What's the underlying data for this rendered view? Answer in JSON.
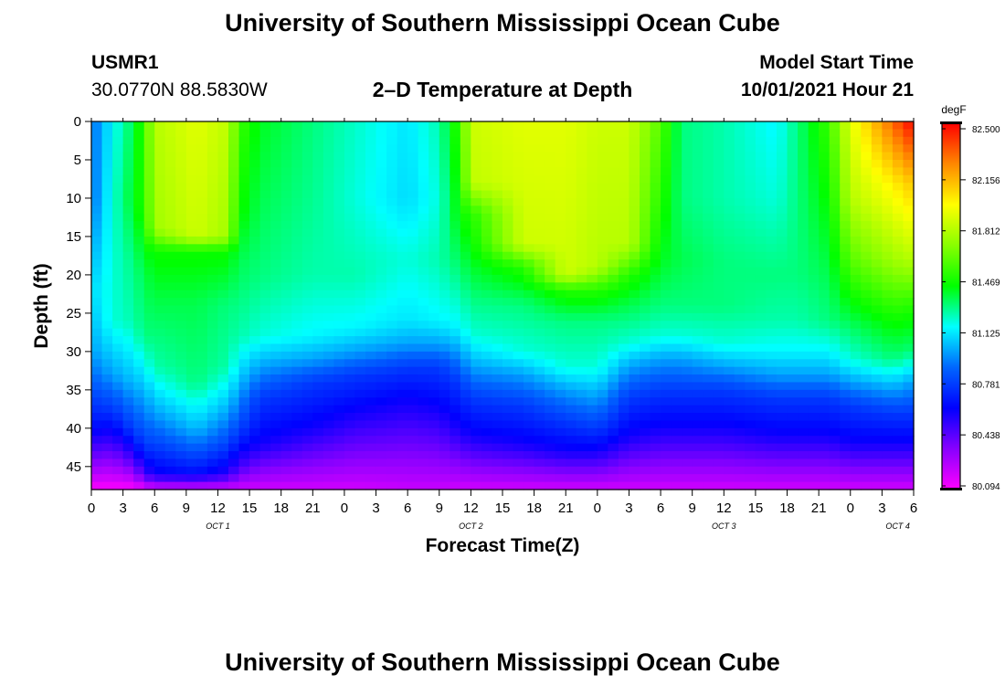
{
  "header": {
    "title": "University of Southern Mississippi Ocean Cube",
    "station_id": "USMR1",
    "coords": "30.0770N  88.5830W",
    "subtitle": "2–D Temperature at Depth",
    "model_start_label": "Model Start Time",
    "model_start_value": "10/01/2021 Hour 21"
  },
  "footer": {
    "title": "University of Southern Mississippi Ocean Cube"
  },
  "chart_data": {
    "type": "heatmap",
    "title": "2–D Temperature at Depth",
    "xlabel": "Forecast Time(Z)",
    "ylabel": "Depth (ft)",
    "x_range_hours": [
      0,
      78
    ],
    "y_range_ft": [
      0,
      48
    ],
    "x_ticks": [
      {
        "h": 0,
        "label": "0"
      },
      {
        "h": 3,
        "label": "3"
      },
      {
        "h": 6,
        "label": "6"
      },
      {
        "h": 9,
        "label": "9"
      },
      {
        "h": 12,
        "label": "12"
      },
      {
        "h": 15,
        "label": "15"
      },
      {
        "h": 18,
        "label": "18"
      },
      {
        "h": 21,
        "label": "21"
      },
      {
        "h": 24,
        "label": "0"
      },
      {
        "h": 27,
        "label": "3"
      },
      {
        "h": 30,
        "label": "6"
      },
      {
        "h": 33,
        "label": "9"
      },
      {
        "h": 36,
        "label": "12"
      },
      {
        "h": 39,
        "label": "15"
      },
      {
        "h": 42,
        "label": "18"
      },
      {
        "h": 45,
        "label": "21"
      },
      {
        "h": 48,
        "label": "0"
      },
      {
        "h": 51,
        "label": "3"
      },
      {
        "h": 54,
        "label": "6"
      },
      {
        "h": 57,
        "label": "9"
      },
      {
        "h": 60,
        "label": "12"
      },
      {
        "h": 63,
        "label": "15"
      },
      {
        "h": 66,
        "label": "18"
      },
      {
        "h": 69,
        "label": "21"
      },
      {
        "h": 72,
        "label": "0"
      },
      {
        "h": 75,
        "label": "3"
      },
      {
        "h": 78,
        "label": "6"
      }
    ],
    "day_labels": [
      {
        "h": 12,
        "label": "OCT 1"
      },
      {
        "h": 36,
        "label": "OCT 2"
      },
      {
        "h": 60,
        "label": "OCT 3"
      },
      {
        "h": 76.5,
        "label": "OCT 4"
      }
    ],
    "y_ticks": [
      0,
      5,
      10,
      15,
      20,
      25,
      30,
      35,
      40,
      45
    ],
    "colorbar": {
      "unit": "degF",
      "min": 80.094,
      "max": 82.5,
      "tick_labels": [
        "82.500",
        "82.156",
        "81.812",
        "81.469",
        "81.125",
        "80.781",
        "80.438",
        "80.094"
      ],
      "colors": [
        "#ff00ff",
        "#8800ff",
        "#0000ff",
        "#0066ff",
        "#00ffff",
        "#00ff00",
        "#88ff00",
        "#ffff00",
        "#ff8800",
        "#ff0000"
      ]
    },
    "profiles": [
      {
        "h": 0,
        "layers": [
          [
            0,
            80.9
          ],
          [
            10,
            80.9
          ],
          [
            16,
            81.0
          ],
          [
            22,
            81.1
          ],
          [
            30,
            81.0
          ],
          [
            36,
            80.8
          ],
          [
            40,
            80.65
          ],
          [
            44,
            80.4
          ],
          [
            48,
            80.1
          ]
        ]
      },
      {
        "h": 2,
        "layers": [
          [
            0,
            81.15
          ],
          [
            10,
            81.2
          ],
          [
            18,
            81.2
          ],
          [
            26,
            81.2
          ],
          [
            33,
            81.0
          ],
          [
            38,
            80.75
          ],
          [
            42,
            80.5
          ],
          [
            48,
            80.1
          ]
        ]
      },
      {
        "h": 4,
        "layers": [
          [
            0,
            81.35
          ],
          [
            10,
            81.4
          ],
          [
            18,
            81.3
          ],
          [
            26,
            81.25
          ],
          [
            34,
            81.05
          ],
          [
            40,
            80.8
          ],
          [
            44,
            80.5
          ],
          [
            48,
            80.1
          ]
        ]
      },
      {
        "h": 5,
        "layers": [
          [
            0,
            81.55
          ],
          [
            12,
            81.5
          ],
          [
            20,
            81.35
          ],
          [
            28,
            81.3
          ],
          [
            36,
            81.0
          ],
          [
            42,
            80.8
          ],
          [
            46,
            80.5
          ],
          [
            48,
            80.15
          ]
        ]
      },
      {
        "h": 6,
        "layers": [
          [
            0,
            81.8
          ],
          [
            14,
            81.75
          ],
          [
            17,
            81.45
          ],
          [
            24,
            81.35
          ],
          [
            32,
            81.25
          ],
          [
            38,
            81.0
          ],
          [
            42,
            80.8
          ],
          [
            46,
            80.6
          ],
          [
            48,
            80.2
          ]
        ]
      },
      {
        "h": 10,
        "layers": [
          [
            0,
            81.9
          ],
          [
            15,
            81.85
          ],
          [
            17,
            81.45
          ],
          [
            24,
            81.35
          ],
          [
            34,
            81.3
          ],
          [
            40,
            81.05
          ],
          [
            43,
            80.85
          ],
          [
            46,
            80.65
          ],
          [
            48,
            80.2
          ]
        ]
      },
      {
        "h": 13,
        "layers": [
          [
            0,
            81.82
          ],
          [
            15,
            81.75
          ],
          [
            17,
            81.45
          ],
          [
            24,
            81.3
          ],
          [
            32,
            81.25
          ],
          [
            38,
            81.0
          ],
          [
            42,
            80.8
          ],
          [
            46,
            80.55
          ],
          [
            48,
            80.2
          ]
        ]
      },
      {
        "h": 14,
        "layers": [
          [
            0,
            81.55
          ],
          [
            12,
            81.45
          ],
          [
            18,
            81.35
          ],
          [
            28,
            81.25
          ],
          [
            34,
            81.05
          ],
          [
            40,
            80.8
          ],
          [
            45,
            80.5
          ],
          [
            48,
            80.2
          ]
        ]
      },
      {
        "h": 16,
        "layers": [
          [
            0,
            81.4
          ],
          [
            10,
            81.35
          ],
          [
            20,
            81.3
          ],
          [
            28,
            81.2
          ],
          [
            32,
            81.0
          ],
          [
            36,
            80.78
          ],
          [
            42,
            80.6
          ],
          [
            48,
            80.2
          ]
        ]
      },
      {
        "h": 21,
        "layers": [
          [
            0,
            81.3
          ],
          [
            10,
            81.28
          ],
          [
            20,
            81.25
          ],
          [
            28,
            81.15
          ],
          [
            31,
            81.0
          ],
          [
            34,
            80.78
          ],
          [
            40,
            80.6
          ],
          [
            48,
            80.2
          ]
        ]
      },
      {
        "h": 25,
        "layers": [
          [
            0,
            81.22
          ],
          [
            10,
            81.2
          ],
          [
            20,
            81.25
          ],
          [
            27,
            81.15
          ],
          [
            30,
            81.0
          ],
          [
            33,
            80.78
          ],
          [
            38,
            80.6
          ],
          [
            48,
            80.2
          ]
        ]
      },
      {
        "h": 30,
        "layers": [
          [
            0,
            81.12
          ],
          [
            10,
            81.1
          ],
          [
            18,
            81.2
          ],
          [
            26,
            81.12
          ],
          [
            29,
            81.0
          ],
          [
            32,
            80.78
          ],
          [
            36,
            80.62
          ],
          [
            48,
            80.22
          ]
        ]
      },
      {
        "h": 33,
        "layers": [
          [
            0,
            81.25
          ],
          [
            10,
            81.2
          ],
          [
            18,
            81.25
          ],
          [
            26,
            81.15
          ],
          [
            29,
            81.0
          ],
          [
            32,
            80.78
          ],
          [
            37,
            80.62
          ],
          [
            48,
            80.22
          ]
        ]
      },
      {
        "h": 35,
        "layers": [
          [
            0,
            81.55
          ],
          [
            12,
            81.45
          ],
          [
            20,
            81.3
          ],
          [
            27,
            81.15
          ],
          [
            30,
            81.0
          ],
          [
            34,
            80.78
          ],
          [
            40,
            80.6
          ],
          [
            48,
            80.2
          ]
        ]
      },
      {
        "h": 36,
        "layers": [
          [
            0,
            81.85
          ],
          [
            8,
            81.82
          ],
          [
            12,
            81.5
          ],
          [
            18,
            81.4
          ],
          [
            28,
            81.2
          ],
          [
            32,
            81.0
          ],
          [
            36,
            80.78
          ],
          [
            41,
            80.6
          ],
          [
            48,
            80.2
          ]
        ]
      },
      {
        "h": 41,
        "layers": [
          [
            0,
            81.9
          ],
          [
            16,
            81.85
          ],
          [
            19,
            81.5
          ],
          [
            24,
            81.3
          ],
          [
            30,
            81.2
          ],
          [
            33,
            81.0
          ],
          [
            37,
            80.78
          ],
          [
            42,
            80.6
          ],
          [
            48,
            80.2
          ]
        ]
      },
      {
        "h": 45,
        "layers": [
          [
            0,
            81.9
          ],
          [
            20,
            81.85
          ],
          [
            22,
            81.5
          ],
          [
            26,
            81.3
          ],
          [
            32,
            81.2
          ],
          [
            35,
            81.0
          ],
          [
            39,
            80.78
          ],
          [
            43,
            80.6
          ],
          [
            48,
            80.2
          ]
        ]
      },
      {
        "h": 48,
        "layers": [
          [
            0,
            81.85
          ],
          [
            19,
            81.8
          ],
          [
            22,
            81.5
          ],
          [
            26,
            81.3
          ],
          [
            32,
            81.2
          ],
          [
            36,
            81.0
          ],
          [
            40,
            80.78
          ],
          [
            43,
            80.6
          ],
          [
            48,
            80.2
          ]
        ]
      },
      {
        "h": 51,
        "layers": [
          [
            0,
            81.85
          ],
          [
            16,
            81.8
          ],
          [
            20,
            81.5
          ],
          [
            24,
            81.35
          ],
          [
            29,
            81.2
          ],
          [
            32,
            81.0
          ],
          [
            36,
            80.78
          ],
          [
            41,
            80.6
          ],
          [
            48,
            80.2
          ]
        ]
      },
      {
        "h": 54,
        "layers": [
          [
            0,
            81.6
          ],
          [
            10,
            81.5
          ],
          [
            18,
            81.4
          ],
          [
            24,
            81.3
          ],
          [
            28,
            81.2
          ],
          [
            31,
            81.0
          ],
          [
            35,
            80.78
          ],
          [
            40,
            80.6
          ],
          [
            48,
            80.2
          ]
        ]
      },
      {
        "h": 56,
        "layers": [
          [
            0,
            81.3
          ],
          [
            10,
            81.3
          ],
          [
            18,
            81.35
          ],
          [
            24,
            81.3
          ],
          [
            28,
            81.2
          ],
          [
            31,
            81.0
          ],
          [
            35,
            80.78
          ],
          [
            40,
            80.6
          ],
          [
            48,
            80.2
          ]
        ]
      },
      {
        "h": 60,
        "layers": [
          [
            0,
            81.25
          ],
          [
            10,
            81.25
          ],
          [
            18,
            81.3
          ],
          [
            24,
            81.3
          ],
          [
            29,
            81.2
          ],
          [
            32,
            81.0
          ],
          [
            35,
            80.78
          ],
          [
            40,
            80.6
          ],
          [
            48,
            80.2
          ]
        ]
      },
      {
        "h": 65,
        "layers": [
          [
            0,
            81.15
          ],
          [
            10,
            81.2
          ],
          [
            20,
            81.3
          ],
          [
            26,
            81.25
          ],
          [
            30,
            81.15
          ],
          [
            33,
            81.0
          ],
          [
            36,
            80.78
          ],
          [
            41,
            80.6
          ],
          [
            48,
            80.2
          ]
        ]
      },
      {
        "h": 67,
        "layers": [
          [
            0,
            81.3
          ],
          [
            10,
            81.3
          ],
          [
            20,
            81.3
          ],
          [
            26,
            81.25
          ],
          [
            30,
            81.15
          ],
          [
            33,
            81.0
          ],
          [
            36,
            80.78
          ],
          [
            41,
            80.6
          ],
          [
            48,
            80.2
          ]
        ]
      },
      {
        "h": 70,
        "layers": [
          [
            0,
            81.55
          ],
          [
            10,
            81.45
          ],
          [
            20,
            81.35
          ],
          [
            26,
            81.3
          ],
          [
            30,
            81.15
          ],
          [
            33,
            81.0
          ],
          [
            36,
            80.78
          ],
          [
            41,
            80.6
          ],
          [
            48,
            80.2
          ]
        ]
      },
      {
        "h": 72,
        "layers": [
          [
            0,
            81.9
          ],
          [
            10,
            81.8
          ],
          [
            18,
            81.6
          ],
          [
            26,
            81.35
          ],
          [
            31,
            81.2
          ],
          [
            34,
            81.0
          ],
          [
            37,
            80.78
          ],
          [
            42,
            80.6
          ],
          [
            48,
            80.2
          ]
        ]
      },
      {
        "h": 76,
        "layers": [
          [
            0,
            82.3
          ],
          [
            8,
            82.0
          ],
          [
            18,
            81.75
          ],
          [
            26,
            81.45
          ],
          [
            31,
            81.3
          ],
          [
            35,
            81.0
          ],
          [
            38,
            80.78
          ],
          [
            42,
            80.6
          ],
          [
            48,
            80.2
          ]
        ]
      },
      {
        "h": 78,
        "layers": [
          [
            0,
            82.5
          ],
          [
            8,
            82.1
          ],
          [
            18,
            81.8
          ],
          [
            24,
            81.5
          ],
          [
            30,
            81.3
          ],
          [
            34,
            81.0
          ],
          [
            38,
            80.78
          ],
          [
            42,
            80.6
          ],
          [
            48,
            80.2
          ]
        ]
      }
    ]
  }
}
